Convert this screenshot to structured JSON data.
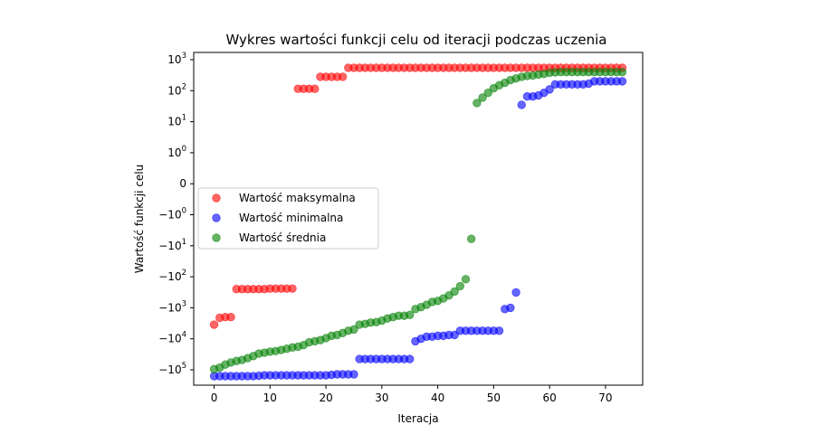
{
  "chart_data": {
    "type": "scatter",
    "title": "Wykres wartości funkcji celu od iteracji podczas uczenia",
    "xlabel": "Iteracja",
    "ylabel": "Wartość funkcji celu",
    "yscale": "symlog",
    "xlim": [
      -3.65,
      76.65
    ],
    "xticks": [
      0,
      10,
      20,
      30,
      40,
      50,
      60,
      70
    ],
    "ytick_labels": [
      {
        "value": 1000,
        "base": "10",
        "exp": "3"
      },
      {
        "value": 100,
        "base": "10",
        "exp": "2"
      },
      {
        "value": 10,
        "base": "10",
        "exp": "1"
      },
      {
        "value": 1,
        "base": "10",
        "exp": "0"
      },
      {
        "value": 0,
        "base": "0",
        "exp": ""
      },
      {
        "value": -1,
        "base": "−10",
        "exp": "0"
      },
      {
        "value": -10,
        "base": "−10",
        "exp": "1"
      },
      {
        "value": -100,
        "base": "−10",
        "exp": "2"
      },
      {
        "value": -1000,
        "base": "−10",
        "exp": "3"
      },
      {
        "value": -10000,
        "base": "−10",
        "exp": "4"
      },
      {
        "value": -100000,
        "base": "−10",
        "exp": "5"
      }
    ],
    "grid": false,
    "legend_position": "center-left",
    "series": [
      {
        "name": "Wartość maksymalna",
        "color": "#ff0000",
        "x": [
          0,
          1,
          2,
          3,
          4,
          5,
          6,
          7,
          8,
          9,
          10,
          11,
          12,
          13,
          14,
          15,
          16,
          17,
          18,
          19,
          20,
          21,
          22,
          23,
          24,
          25,
          26,
          27,
          28,
          29,
          30,
          31,
          32,
          33,
          34,
          35,
          36,
          37,
          38,
          39,
          40,
          41,
          42,
          43,
          44,
          45,
          46,
          47,
          48,
          49,
          50,
          51,
          52,
          53,
          54,
          55,
          56,
          57,
          58,
          59,
          60,
          61,
          62,
          63,
          64,
          65,
          66,
          67,
          68,
          69,
          70,
          71,
          72,
          73
        ],
        "y": [
          -3500,
          -2100,
          -2000,
          -2000,
          -250,
          -250,
          -250,
          -250,
          -250,
          -250,
          -240,
          -240,
          -240,
          -240,
          -240,
          115,
          115,
          115,
          115,
          280,
          280,
          280,
          280,
          280,
          550,
          550,
          550,
          550,
          550,
          550,
          550,
          550,
          550,
          550,
          550,
          550,
          550,
          550,
          550,
          550,
          550,
          550,
          550,
          550,
          550,
          550,
          550,
          550,
          550,
          550,
          550,
          550,
          550,
          550,
          550,
          550,
          550,
          550,
          550,
          550,
          550,
          550,
          550,
          550,
          550,
          550,
          550,
          550,
          550,
          550,
          550,
          550,
          550,
          550
        ]
      },
      {
        "name": "Wartość minimalna",
        "color": "#0000ff",
        "x": [
          0,
          1,
          2,
          3,
          4,
          5,
          6,
          7,
          8,
          9,
          10,
          11,
          12,
          13,
          14,
          15,
          16,
          17,
          18,
          19,
          20,
          21,
          22,
          23,
          24,
          25,
          26,
          27,
          28,
          29,
          30,
          31,
          32,
          33,
          34,
          35,
          36,
          37,
          38,
          39,
          40,
          41,
          42,
          43,
          44,
          45,
          46,
          47,
          48,
          49,
          50,
          51,
          52,
          53,
          54,
          55,
          56,
          57,
          58,
          59,
          60,
          61,
          62,
          63,
          64,
          65,
          66,
          67,
          68,
          69,
          70,
          71,
          72,
          73
        ],
        "y": [
          -160000,
          -160000,
          -160000,
          -160000,
          -160000,
          -160000,
          -160000,
          -160000,
          -155000,
          -150000,
          -150000,
          -150000,
          -150000,
          -150000,
          -150000,
          -150000,
          -150000,
          -150000,
          -150000,
          -150000,
          -150000,
          -145000,
          -140000,
          -140000,
          -140000,
          -140000,
          -45000,
          -45000,
          -45000,
          -45000,
          -45000,
          -45000,
          -45000,
          -45000,
          -45000,
          -45000,
          -12000,
          -10000,
          -8500,
          -8500,
          -8000,
          -8000,
          -7500,
          -7500,
          -5500,
          -5500,
          -5500,
          -5500,
          -5500,
          -5500,
          -5500,
          -5500,
          -1100,
          -1000,
          -320,
          35,
          65,
          65,
          70,
          85,
          110,
          160,
          160,
          160,
          160,
          160,
          160,
          170,
          200,
          200,
          200,
          200,
          200,
          200
        ]
      },
      {
        "name": "Wartość średnia",
        "color": "#008000",
        "x": [
          0,
          1,
          2,
          3,
          4,
          5,
          6,
          7,
          8,
          9,
          10,
          11,
          12,
          13,
          14,
          15,
          16,
          17,
          18,
          19,
          20,
          21,
          22,
          23,
          24,
          25,
          26,
          27,
          28,
          29,
          30,
          31,
          32,
          33,
          34,
          35,
          36,
          37,
          38,
          39,
          40,
          41,
          42,
          43,
          44,
          45,
          46,
          47,
          48,
          49,
          50,
          51,
          52,
          53,
          54,
          55,
          56,
          57,
          58,
          59,
          60,
          61,
          62,
          63,
          64,
          65,
          66,
          67,
          68,
          69,
          70,
          71,
          72,
          73
        ],
        "y": [
          -95000,
          -85000,
          -68000,
          -58000,
          -52000,
          -48000,
          -42000,
          -36000,
          -30000,
          -28000,
          -26000,
          -25000,
          -23000,
          -21000,
          -19000,
          -18000,
          -16000,
          -13000,
          -12000,
          -11000,
          -9500,
          -8000,
          -7500,
          -6500,
          -5500,
          -5000,
          -3500,
          -3300,
          -3000,
          -2900,
          -2600,
          -2200,
          -2000,
          -1800,
          -1800,
          -1700,
          -1100,
          -950,
          -800,
          -650,
          -600,
          -500,
          -400,
          -300,
          -200,
          -120,
          -6,
          40,
          60,
          85,
          120,
          150,
          180,
          220,
          250,
          280,
          300,
          310,
          330,
          350,
          380,
          390,
          400,
          400,
          400,
          400,
          400,
          400,
          400,
          400,
          400,
          400,
          400,
          400
        ]
      }
    ]
  }
}
